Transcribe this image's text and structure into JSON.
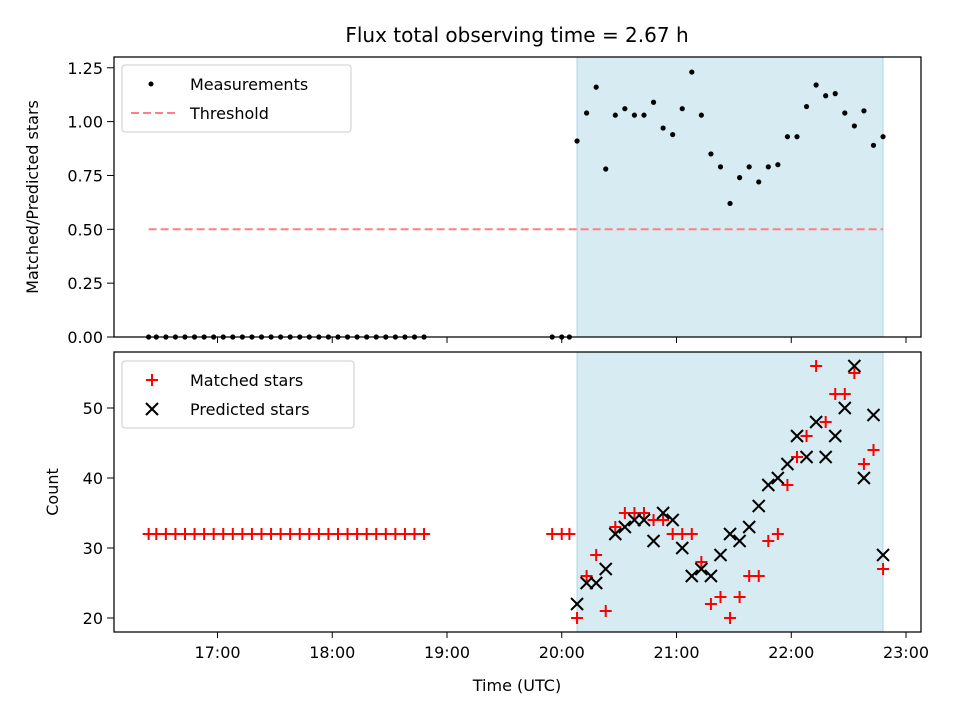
{
  "chart_data": {
    "type": "scatter",
    "title": "Flux total observing time = 2.67 h",
    "xlabel": "Time (UTC)",
    "x_ticks": [
      "17:00",
      "18:00",
      "19:00",
      "20:00",
      "21:00",
      "22:00",
      "23:00"
    ],
    "highlight_span": [
      "20:08",
      "22:48"
    ],
    "highlight_color": "#add8e6",
    "panels": [
      {
        "ylabel": "Matched/Predicted stars",
        "ylim": [
          0,
          1.3
        ],
        "y_ticks": [
          "0.00",
          "0.25",
          "0.50",
          "0.75",
          "1.00",
          "1.25"
        ],
        "legend_position": "upper left",
        "legend": [
          "Measurements",
          "Threshold"
        ],
        "threshold": {
          "name": "Threshold",
          "value": 0.5,
          "color": "#ff8080",
          "x_range": [
            "16:24",
            "22:48"
          ]
        },
        "series": [
          {
            "name": "Measurements",
            "marker": "dot",
            "color": "#000000",
            "points": [
              [
                "16:24",
                0
              ],
              [
                "16:28",
                0
              ],
              [
                "16:33",
                0
              ],
              [
                "16:38",
                0
              ],
              [
                "16:43",
                0
              ],
              [
                "16:48",
                0
              ],
              [
                "16:53",
                0
              ],
              [
                "16:58",
                0
              ],
              [
                "17:03",
                0
              ],
              [
                "17:08",
                0
              ],
              [
                "17:13",
                0
              ],
              [
                "17:18",
                0
              ],
              [
                "17:23",
                0
              ],
              [
                "17:28",
                0
              ],
              [
                "17:33",
                0
              ],
              [
                "17:38",
                0
              ],
              [
                "17:43",
                0
              ],
              [
                "17:48",
                0
              ],
              [
                "17:53",
                0
              ],
              [
                "17:58",
                0
              ],
              [
                "18:03",
                0
              ],
              [
                "18:08",
                0
              ],
              [
                "18:13",
                0
              ],
              [
                "18:18",
                0
              ],
              [
                "18:23",
                0
              ],
              [
                "18:28",
                0
              ],
              [
                "18:33",
                0
              ],
              [
                "18:38",
                0
              ],
              [
                "18:43",
                0
              ],
              [
                "18:48",
                0
              ],
              [
                "19:55",
                0
              ],
              [
                "20:00",
                0
              ],
              [
                "20:04",
                0
              ],
              [
                "20:08",
                0.91
              ],
              [
                "20:13",
                1.04
              ],
              [
                "20:18",
                1.16
              ],
              [
                "20:23",
                0.78
              ],
              [
                "20:28",
                1.03
              ],
              [
                "20:33",
                1.06
              ],
              [
                "20:38",
                1.03
              ],
              [
                "20:43",
                1.03
              ],
              [
                "20:48",
                1.09
              ],
              [
                "20:53",
                0.97
              ],
              [
                "20:58",
                0.94
              ],
              [
                "21:03",
                1.06
              ],
              [
                "21:08",
                1.23
              ],
              [
                "21:13",
                1.03
              ],
              [
                "21:18",
                0.85
              ],
              [
                "21:23",
                0.79
              ],
              [
                "21:28",
                0.62
              ],
              [
                "21:33",
                0.74
              ],
              [
                "21:38",
                0.79
              ],
              [
                "21:43",
                0.72
              ],
              [
                "21:48",
                0.79
              ],
              [
                "21:53",
                0.8
              ],
              [
                "21:58",
                0.93
              ],
              [
                "22:03",
                0.93
              ],
              [
                "22:08",
                1.07
              ],
              [
                "22:13",
                1.17
              ],
              [
                "22:18",
                1.12
              ],
              [
                "22:23",
                1.13
              ],
              [
                "22:28",
                1.04
              ],
              [
                "22:33",
                0.98
              ],
              [
                "22:38",
                1.05
              ],
              [
                "22:43",
                0.89
              ],
              [
                "22:48",
                0.93
              ]
            ]
          }
        ]
      },
      {
        "ylabel": "Count",
        "ylim": [
          18,
          58
        ],
        "y_ticks": [
          "20",
          "30",
          "40",
          "50"
        ],
        "legend_position": "upper left",
        "legend": [
          "Matched stars",
          "Predicted stars"
        ],
        "series": [
          {
            "name": "Matched stars",
            "marker": "plus",
            "color": "#ff0000",
            "points": [
              [
                "16:24",
                32
              ],
              [
                "16:28",
                32
              ],
              [
                "16:33",
                32
              ],
              [
                "16:38",
                32
              ],
              [
                "16:43",
                32
              ],
              [
                "16:48",
                32
              ],
              [
                "16:53",
                32
              ],
              [
                "16:58",
                32
              ],
              [
                "17:03",
                32
              ],
              [
                "17:08",
                32
              ],
              [
                "17:13",
                32
              ],
              [
                "17:18",
                32
              ],
              [
                "17:23",
                32
              ],
              [
                "17:28",
                32
              ],
              [
                "17:33",
                32
              ],
              [
                "17:38",
                32
              ],
              [
                "17:43",
                32
              ],
              [
                "17:48",
                32
              ],
              [
                "17:53",
                32
              ],
              [
                "17:58",
                32
              ],
              [
                "18:03",
                32
              ],
              [
                "18:08",
                32
              ],
              [
                "18:13",
                32
              ],
              [
                "18:18",
                32
              ],
              [
                "18:23",
                32
              ],
              [
                "18:28",
                32
              ],
              [
                "18:33",
                32
              ],
              [
                "18:38",
                32
              ],
              [
                "18:43",
                32
              ],
              [
                "18:48",
                32
              ],
              [
                "19:55",
                32
              ],
              [
                "20:00",
                32
              ],
              [
                "20:04",
                32
              ],
              [
                "20:08",
                20
              ],
              [
                "20:13",
                26
              ],
              [
                "20:18",
                29
              ],
              [
                "20:23",
                21
              ],
              [
                "20:28",
                33
              ],
              [
                "20:33",
                35
              ],
              [
                "20:38",
                35
              ],
              [
                "20:43",
                35
              ],
              [
                "20:48",
                34
              ],
              [
                "20:53",
                34
              ],
              [
                "20:58",
                32
              ],
              [
                "21:03",
                32
              ],
              [
                "21:08",
                32
              ],
              [
                "21:13",
                28
              ],
              [
                "21:18",
                22
              ],
              [
                "21:23",
                23
              ],
              [
                "21:28",
                20
              ],
              [
                "21:33",
                23
              ],
              [
                "21:38",
                26
              ],
              [
                "21:43",
                26
              ],
              [
                "21:48",
                31
              ],
              [
                "21:53",
                32
              ],
              [
                "21:58",
                39
              ],
              [
                "22:03",
                43
              ],
              [
                "22:08",
                46
              ],
              [
                "22:13",
                56
              ],
              [
                "22:18",
                48
              ],
              [
                "22:23",
                52
              ],
              [
                "22:28",
                52
              ],
              [
                "22:33",
                55
              ],
              [
                "22:38",
                42
              ],
              [
                "22:43",
                44
              ],
              [
                "22:48",
                27
              ]
            ]
          },
          {
            "name": "Predicted stars",
            "marker": "x",
            "color": "#000000",
            "points": [
              [
                "20:08",
                22
              ],
              [
                "20:13",
                25
              ],
              [
                "20:18",
                25
              ],
              [
                "20:23",
                27
              ],
              [
                "20:28",
                32
              ],
              [
                "20:33",
                33
              ],
              [
                "20:38",
                34
              ],
              [
                "20:43",
                34
              ],
              [
                "20:48",
                31
              ],
              [
                "20:53",
                35
              ],
              [
                "20:58",
                34
              ],
              [
                "21:03",
                30
              ],
              [
                "21:08",
                26
              ],
              [
                "21:13",
                27
              ],
              [
                "21:18",
                26
              ],
              [
                "21:23",
                29
              ],
              [
                "21:28",
                32
              ],
              [
                "21:33",
                31
              ],
              [
                "21:38",
                33
              ],
              [
                "21:43",
                36
              ],
              [
                "21:48",
                39
              ],
              [
                "21:53",
                40
              ],
              [
                "21:58",
                42
              ],
              [
                "22:03",
                46
              ],
              [
                "22:08",
                43
              ],
              [
                "22:13",
                48
              ],
              [
                "22:18",
                43
              ],
              [
                "22:23",
                46
              ],
              [
                "22:28",
                50
              ],
              [
                "22:33",
                56
              ],
              [
                "22:38",
                40
              ],
              [
                "22:43",
                49
              ],
              [
                "22:48",
                29
              ]
            ]
          }
        ]
      }
    ]
  }
}
